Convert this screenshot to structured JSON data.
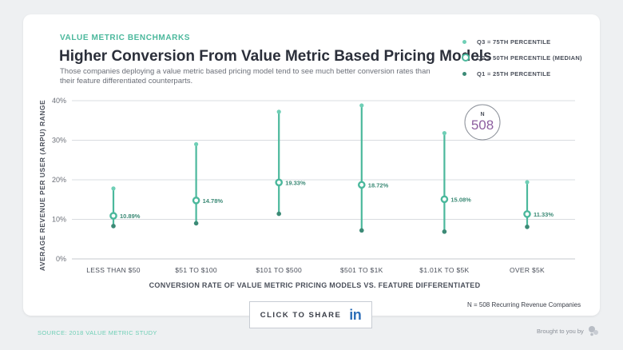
{
  "header": {
    "kicker": "VALUE METRIC BENCHMARKS",
    "title": "Higher Conversion From Value Metric Based Pricing Models",
    "subtitle": "Those companies deploying a value metric based pricing model tend to see much better conversion rates than their feature differentiated counterparts."
  },
  "legend": {
    "q3": "Q3 = 75TH PERCENTILE",
    "q2": "Q2 = 50TH PERCENTILE (MEDIAN)",
    "q1": "Q1 = 25TH PERCENTILE"
  },
  "badge": {
    "label": "N",
    "value": "508"
  },
  "footnote": "N = 508 Recurring Revenue Companies",
  "share": {
    "label": "CLICK TO SHARE",
    "icon": "linkedin-icon",
    "icon_text": "in"
  },
  "footer": {
    "source": "SOURCE: 2018 VALUE METRIC STUDY",
    "brought": "Brought to you by"
  },
  "colors": {
    "q3": "#6fcfb6",
    "q2": "#4bb89c",
    "q1": "#3c8a76",
    "line": "#4bb89c",
    "median_label": "#3c8a76",
    "badge": "#8e5fa0"
  },
  "chart_data": {
    "type": "scatter",
    "xlabel": "CONVERSION RATE OF VALUE METRIC PRICING MODELS VS. FEATURE DIFFERENTIATED",
    "ylabel": "AVERAGE REVENUE PER USER (ARPU) RANGE",
    "ylim": [
      0,
      40
    ],
    "yticks": [
      0,
      10,
      20,
      30,
      40
    ],
    "ytick_labels": [
      "0%",
      "10%",
      "20%",
      "30%",
      "40%"
    ],
    "grid": true,
    "categories": [
      "LESS THAN $50",
      "$51 TO $100",
      "$101 TO $500",
      "$501 TO $1K",
      "$1.01K TO $5K",
      "OVER $5K"
    ],
    "q3": [
      17.8,
      29.0,
      37.2,
      38.8,
      31.8,
      19.4
    ],
    "median": [
      10.89,
      14.78,
      19.33,
      18.72,
      15.08,
      11.33
    ],
    "median_labels": [
      "10.89%",
      "14.78%",
      "19.33%",
      "18.72%",
      "15.08%",
      "11.33%"
    ],
    "q1": [
      8.3,
      9.0,
      11.4,
      7.2,
      6.9,
      8.1
    ]
  }
}
